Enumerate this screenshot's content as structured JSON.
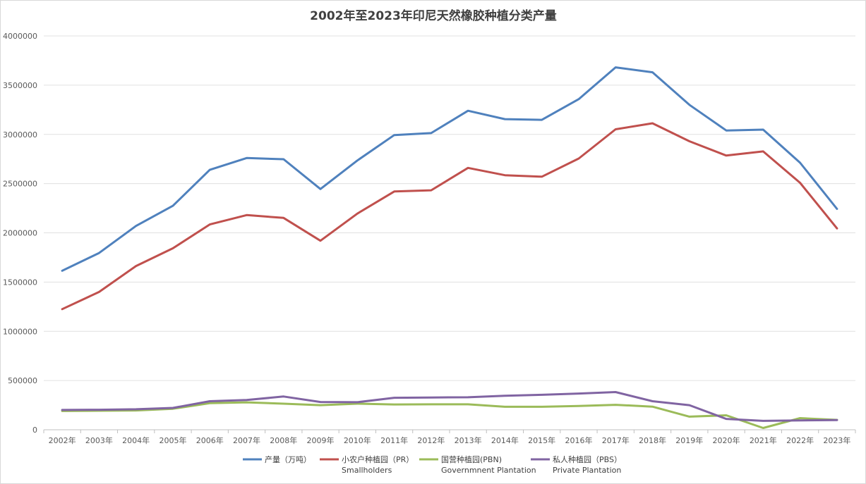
{
  "chart_data": {
    "type": "line",
    "title": "2002年至2023年印尼天然橡胶种植分类产量",
    "xlabel": "",
    "ylabel": "",
    "ylim": [
      0,
      4000000
    ],
    "yticks": [
      "0",
      "500000",
      "1000000",
      "1500000",
      "2000000",
      "2500000",
      "3000000",
      "3500000",
      "4000000"
    ],
    "grid": true,
    "legend_position": "bottom",
    "categories": [
      "2002年",
      "2003年",
      "2004年",
      "2005年",
      "2006年",
      "2007年",
      "2008年",
      "2009年",
      "2010年",
      "2011年",
      "2012年",
      "2013年",
      "2014年",
      "2015年",
      "2016年",
      "2017年",
      "2018年",
      "2019年",
      "2020年",
      "2021年",
      "2022年",
      "2023年"
    ],
    "series": [
      {
        "name": "产量（万吨）",
        "sub": "",
        "color": "#4F81BD",
        "values": [
          1615000,
          1795000,
          2070000,
          2275000,
          2640000,
          2760000,
          2748000,
          2445000,
          2735000,
          2993000,
          3013000,
          3240000,
          3155000,
          3148000,
          3358000,
          3681000,
          3631000,
          3300000,
          3040000,
          3048000,
          2712000,
          2243000
        ]
      },
      {
        "name": "小农户种植园（PR）",
        "sub": "Smallholders",
        "color": "#C0504D",
        "values": [
          1225000,
          1400000,
          1663000,
          1843000,
          2085000,
          2180000,
          2152000,
          1920000,
          2195000,
          2420000,
          2432000,
          2660000,
          2585000,
          2570000,
          2755000,
          3052000,
          3113000,
          2930000,
          2785000,
          2827000,
          2508000,
          2045000
        ]
      },
      {
        "name": "国营种植园(PBN)",
        "sub": "Governmnent Plantation",
        "color": "#9BBB59",
        "values": [
          190000,
          193000,
          196000,
          213000,
          270000,
          278000,
          265000,
          250000,
          265000,
          257000,
          258000,
          258000,
          233000,
          233000,
          242000,
          253000,
          235000,
          133000,
          147000,
          18000,
          118000,
          100000
        ]
      },
      {
        "name": "私人种植园（PBS）",
        "sub": "Private Plantation",
        "color": "#8064A2",
        "values": [
          201000,
          203000,
          208000,
          222000,
          290000,
          302000,
          338000,
          282000,
          280000,
          325000,
          328000,
          330000,
          345000,
          355000,
          368000,
          383000,
          290000,
          250000,
          110000,
          90000,
          95000,
          98000
        ]
      }
    ]
  }
}
